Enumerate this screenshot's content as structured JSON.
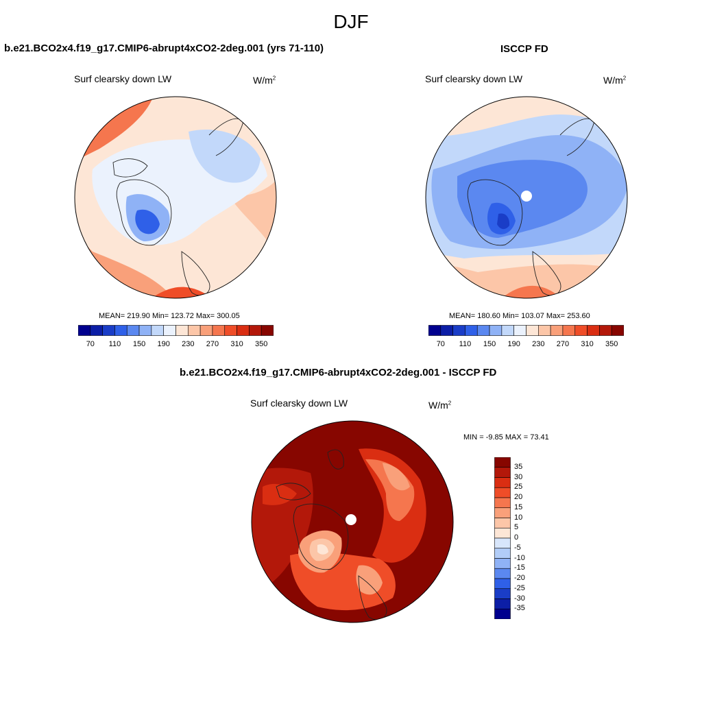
{
  "title": "DJF",
  "panels": [
    {
      "id": "model",
      "title": "b.e21.BCO2x4.f19_g17.CMIP6-abrupt4xCO2-2deg.001 (yrs 71-110)",
      "variable": "Surf clearsky down LW",
      "units_base": "W/m",
      "units_exp": "2",
      "stats": "MEAN= 219.90  Min= 123.72  Max= 300.05"
    },
    {
      "id": "obs",
      "title": "ISCCP FD",
      "variable": "Surf clearsky down LW",
      "units_base": "W/m",
      "units_exp": "2",
      "stats": "MEAN= 180.60  Min= 103.07  Max= 253.60"
    },
    {
      "id": "diff",
      "title": "b.e21.BCO2x4.f19_g17.CMIP6-abrupt4xCO2-2deg.001 - ISCCP FD",
      "variable": "Surf clearsky down LW",
      "units_base": "W/m",
      "units_exp": "2",
      "stats": "MIN =  -9.85 MAX =  73.41"
    }
  ],
  "colorbar_abs": {
    "colors": [
      "#00008e",
      "#0c1ea6",
      "#1a3dc7",
      "#2f60e8",
      "#5b88f0",
      "#8fb2f6",
      "#c2d8fa",
      "#ebf2fd",
      "#fde6d6",
      "#fcc6a8",
      "#f9a07a",
      "#f5764e",
      "#ef4d28",
      "#da2e12",
      "#b3180a",
      "#870600"
    ],
    "labels": [
      "70",
      "110",
      "150",
      "190",
      "230",
      "270",
      "310",
      "350"
    ]
  },
  "colorbar_diff": {
    "colors": [
      "#870600",
      "#b3180a",
      "#da2e12",
      "#ef4d28",
      "#f5764e",
      "#f9a07a",
      "#fcc6a8",
      "#fde6d6",
      "#d8e6fb",
      "#b2cdf8",
      "#8fb2f6",
      "#5b88f0",
      "#2f60e8",
      "#1a3dc7",
      "#0c1ea6",
      "#00008e"
    ],
    "labels": [
      "35",
      "30",
      "25",
      "20",
      "15",
      "10",
      "5",
      "0",
      "-5",
      "-10",
      "-15",
      "-20",
      "-25",
      "-30",
      "-35"
    ]
  }
}
